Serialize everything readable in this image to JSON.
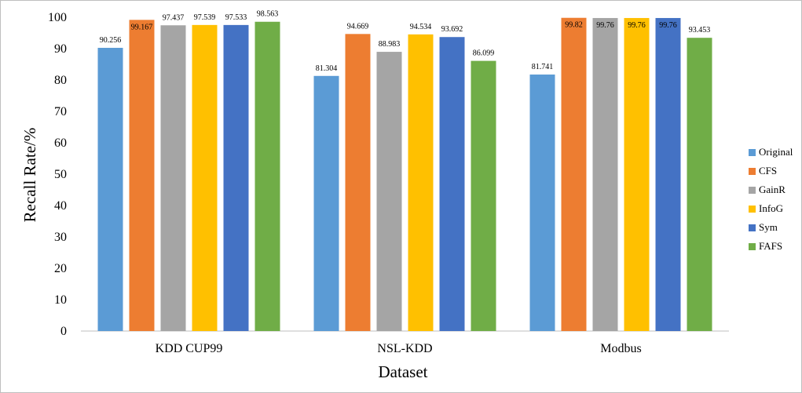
{
  "chart_data": {
    "type": "bar",
    "title": "",
    "xlabel": "Dataset",
    "ylabel": "Recall Rate/%",
    "ylim": [
      0,
      100
    ],
    "yticks": [
      0,
      10,
      20,
      30,
      40,
      50,
      60,
      70,
      80,
      90,
      100
    ],
    "grid": false,
    "legend_position": "right",
    "categories": [
      "KDD CUP99",
      "NSL-KDD",
      "Modbus"
    ],
    "series": [
      {
        "name": "Original",
        "color": "#5b9bd5",
        "values": [
          90.256,
          81.304,
          81.741
        ],
        "labels": [
          "90.256",
          "81.304",
          "81.741"
        ]
      },
      {
        "name": "CFS",
        "color": "#ed7d31",
        "values": [
          99.167,
          94.669,
          99.82
        ],
        "labels": [
          "99.167",
          "94.669",
          "99.82"
        ]
      },
      {
        "name": "GainR",
        "color": "#a5a5a5",
        "values": [
          97.437,
          88.983,
          99.76
        ],
        "labels": [
          "97.437",
          "88.983",
          "99.76"
        ]
      },
      {
        "name": "InfoG",
        "color": "#ffc000",
        "values": [
          97.539,
          94.534,
          99.76
        ],
        "labels": [
          "97.539",
          "94.534",
          "99.76"
        ]
      },
      {
        "name": "Sym",
        "color": "#4472c4",
        "values": [
          97.533,
          93.692,
          99.76
        ],
        "labels": [
          "97.533",
          "93.692",
          "99.76"
        ]
      },
      {
        "name": "FAFS",
        "color": "#70ad47",
        "values": [
          98.563,
          86.099,
          93.453
        ],
        "labels": [
          "98.563",
          "86.099",
          "93.453"
        ]
      }
    ]
  }
}
